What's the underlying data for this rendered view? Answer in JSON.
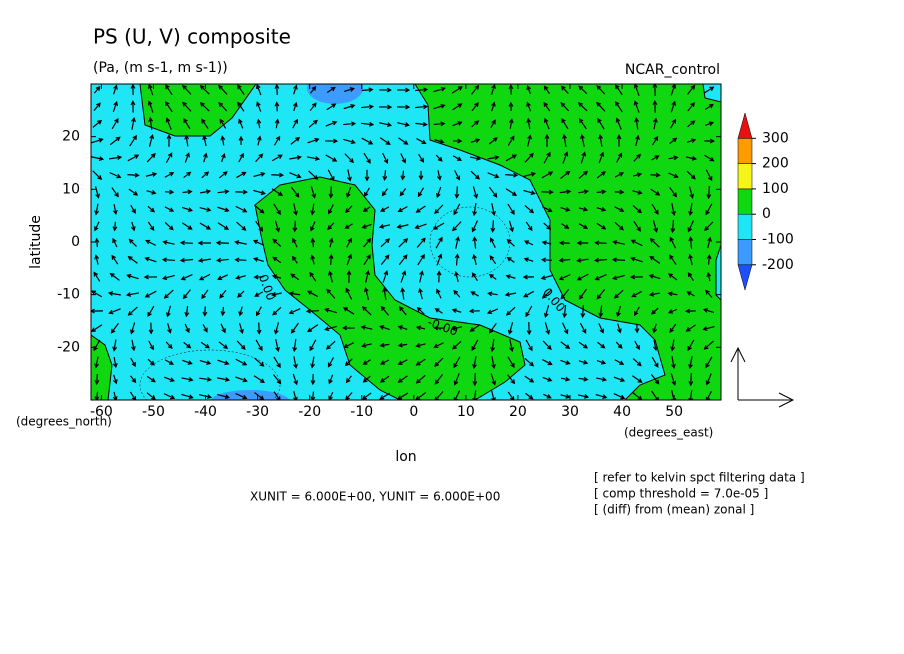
{
  "chart_data": {
    "type": "contour",
    "title": "PS (U, V) composite",
    "subtitle": "(Pa, (m s-1, m s-1))",
    "run_label": "NCAR_control",
    "x_label": "lon",
    "y_label": "latitude",
    "x_unit": "(degrees_east)",
    "y_unit": "(degrees_north)",
    "xlim": [
      -62,
      59
    ],
    "ylim": [
      -30,
      30
    ],
    "xticks": [
      -60,
      -50,
      -40,
      -30,
      -20,
      -10,
      0,
      10,
      20,
      30,
      40,
      50
    ],
    "yticks": [
      -20,
      -10,
      0,
      10,
      20
    ],
    "levels": [
      -200,
      -100,
      0,
      100,
      200,
      300
    ],
    "colors": [
      "#1e50ff",
      "#3c9bff",
      "#1fe6f5",
      "#10d810",
      "#f5f51a",
      "#ff9a00",
      "#e81010"
    ],
    "contour_labels": [
      "0.00",
      "-0.00",
      "0.00"
    ],
    "vector_units": "XUNIT = 6.000E+00, YUNIT = 6.000E+00",
    "notes": [
      "[ refer to kelvin spct filtering data ]",
      "[ comp threshold = 7.0e-05 ]",
      "[ (diff) from (mean) zonal ]"
    ]
  }
}
